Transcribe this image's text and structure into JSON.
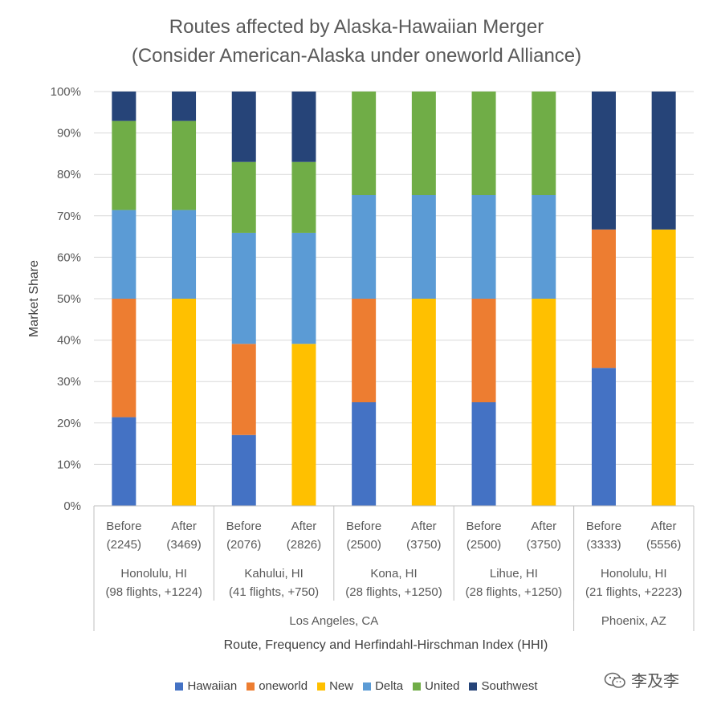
{
  "title_line1": "Routes affected by Alaska-Hawaiian Merger",
  "title_line2": "(Consider American-Alaska under oneworld Alliance)",
  "watermark": "李及李",
  "chart_data": {
    "type": "bar",
    "stacked": true,
    "ylabel": "Market Share",
    "xlabel": "Route, Frequency and Herfindahl-Hirschman Index (HHI)",
    "ylim": [
      0,
      100
    ],
    "yticks": [
      "0%",
      "10%",
      "20%",
      "30%",
      "40%",
      "50%",
      "60%",
      "70%",
      "80%",
      "90%",
      "100%"
    ],
    "legend_position": "bottom",
    "bars": [
      {
        "label1": "Before",
        "label2": "(2245)"
      },
      {
        "label1": "After",
        "label2": "(3469)"
      },
      {
        "label1": "Before",
        "label2": "(2076)"
      },
      {
        "label1": "After",
        "label2": "(2826)"
      },
      {
        "label1": "Before",
        "label2": "(2500)"
      },
      {
        "label1": "After",
        "label2": "(3750)"
      },
      {
        "label1": "Before",
        "label2": "(2500)"
      },
      {
        "label1": "After",
        "label2": "(3750)"
      },
      {
        "label1": "Before",
        "label2": "(3333)"
      },
      {
        "label1": "After",
        "label2": "(5556)"
      }
    ],
    "routes": [
      {
        "line1": "Honolulu, HI",
        "line2": "(98 flights, +1224)"
      },
      {
        "line1": "Kahului, HI",
        "line2": "(41 flights, +750)"
      },
      {
        "line1": "Kona, HI",
        "line2": "(28 flights, +1250)"
      },
      {
        "line1": "Lihue, HI",
        "line2": "(28 flights, +1250)"
      },
      {
        "line1": "Honolulu, HI",
        "line2": "(21 flights, +2223)"
      }
    ],
    "origins": [
      {
        "label": "Los Angeles, CA",
        "routes": 4
      },
      {
        "label": "Phoenix, AZ",
        "routes": 1
      }
    ],
    "series": [
      {
        "name": "Hawaiian",
        "color": "#4472C4",
        "values": [
          21.4,
          0,
          17.1,
          0,
          25,
          0,
          25,
          0,
          33.3,
          0
        ]
      },
      {
        "name": "oneworld",
        "color": "#ED7D31",
        "values": [
          28.6,
          0,
          22.0,
          0,
          25,
          0,
          25,
          0,
          33.4,
          0
        ]
      },
      {
        "name": "New",
        "color": "#FFC000",
        "values": [
          0,
          50,
          0,
          39.1,
          0,
          50,
          0,
          50,
          0,
          66.7
        ]
      },
      {
        "name": "Delta",
        "color": "#5B9BD5",
        "values": [
          21.4,
          21.4,
          26.8,
          26.8,
          25,
          25,
          25,
          25,
          0,
          0
        ]
      },
      {
        "name": "United",
        "color": "#70AD47",
        "values": [
          21.5,
          21.5,
          17.1,
          17.1,
          25,
          25,
          25,
          25,
          0,
          0
        ]
      },
      {
        "name": "Southwest",
        "color": "#264478",
        "values": [
          7.1,
          7.1,
          17.0,
          17.0,
          0,
          0,
          0,
          0,
          33.3,
          33.3
        ]
      }
    ]
  }
}
